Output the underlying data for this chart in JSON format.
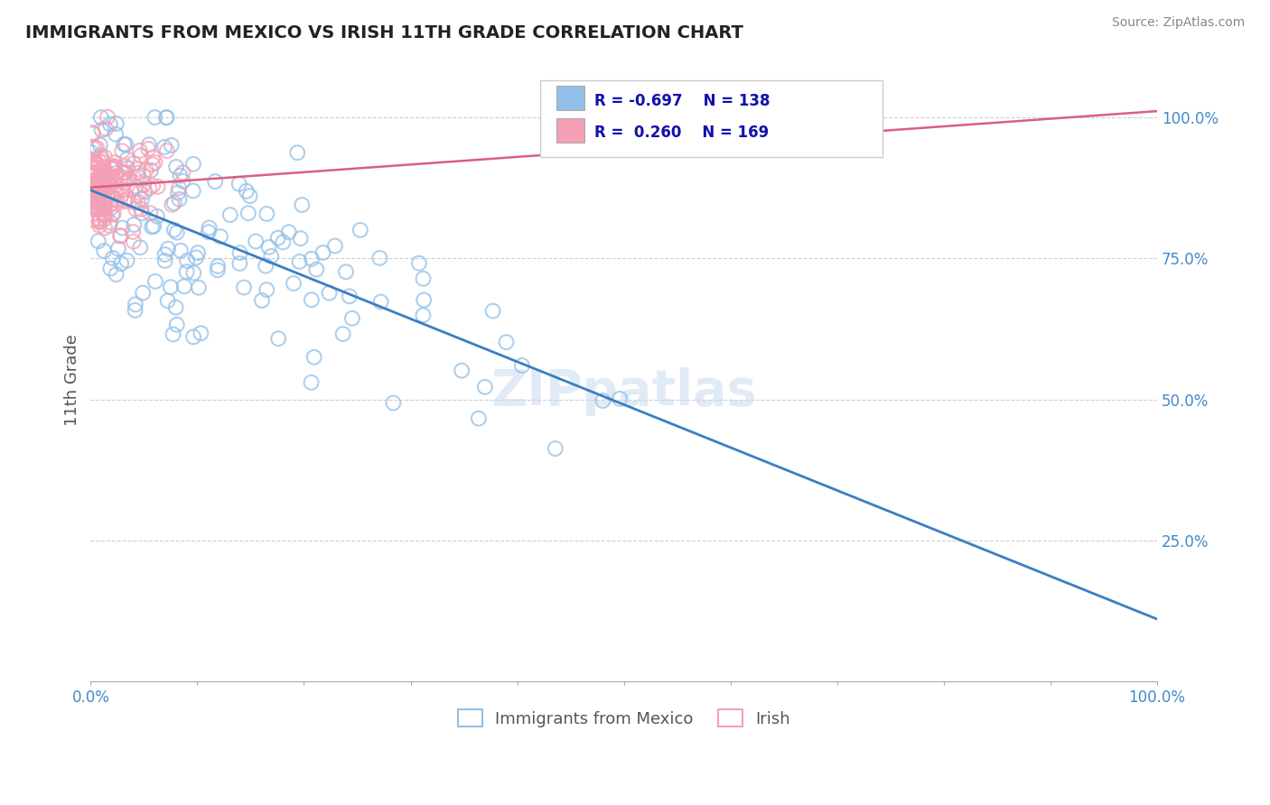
{
  "title": "IMMIGRANTS FROM MEXICO VS IRISH 11TH GRADE CORRELATION CHART",
  "source": "Source: ZipAtlas.com",
  "ylabel": "11th Grade",
  "legend_label1": "Immigrants from Mexico",
  "legend_label2": "Irish",
  "blue_color": "#92C0E8",
  "pink_color": "#F4A0B5",
  "blue_line_color": "#3A7FC1",
  "pink_line_color": "#D96080",
  "blue_r": -0.697,
  "pink_r": 0.26,
  "blue_n": 138,
  "pink_n": 169,
  "xmin": 0.0,
  "xmax": 1.0,
  "ymin": 0.0,
  "ymax": 1.0,
  "background_color": "#FFFFFF",
  "grid_color": "#BBBBBB",
  "watermark_color": "#C5D8EE",
  "title_color": "#222222",
  "source_color": "#888888",
  "tick_color": "#4488CC",
  "ylabel_color": "#555555"
}
